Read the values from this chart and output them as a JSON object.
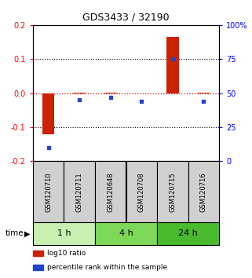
{
  "title": "GDS3433 / 32190",
  "samples": [
    "GSM120710",
    "GSM120711",
    "GSM120648",
    "GSM120708",
    "GSM120715",
    "GSM120716"
  ],
  "log10_ratio": [
    -0.122,
    0.002,
    0.002,
    -0.002,
    0.165,
    0.001
  ],
  "percentile_rank": [
    10,
    45,
    47,
    44,
    75,
    44
  ],
  "groups": [
    {
      "label": "1 h",
      "cols": [
        0,
        1
      ],
      "color": "#c8f0b0"
    },
    {
      "label": "4 h",
      "cols": [
        2,
        3
      ],
      "color": "#7dd85a"
    },
    {
      "label": "24 h",
      "cols": [
        4,
        5
      ],
      "color": "#4aba2e"
    }
  ],
  "ylim_left": [
    -0.2,
    0.2
  ],
  "ylim_right": [
    0,
    100
  ],
  "left_ticks": [
    -0.2,
    -0.1,
    0.0,
    0.1,
    0.2
  ],
  "right_ticks": [
    0,
    25,
    50,
    75,
    100
  ],
  "right_tick_labels": [
    "0",
    "25",
    "50",
    "75",
    "100%"
  ],
  "bar_color": "#cc2200",
  "dot_color": "#2244cc",
  "hline_color": "#cc0000",
  "background_color": "#ffffff",
  "time_label": "time",
  "legend": [
    {
      "label": "log10 ratio",
      "color": "#cc2200"
    },
    {
      "label": "percentile rank within the sample",
      "color": "#2244cc"
    }
  ]
}
